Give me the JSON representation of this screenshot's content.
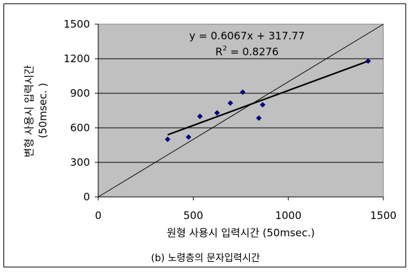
{
  "chart_data": {
    "type": "scatter",
    "xlabel": "원형 사용시 입력시간 (50msec.)",
    "ylabel_line1": "변형 사용시 입력시간",
    "ylabel_line2": "(50msec. )",
    "xlim": [
      0,
      1500
    ],
    "ylim": [
      0,
      1500
    ],
    "x_ticks": [
      0,
      500,
      1000,
      1500
    ],
    "y_ticks": [
      0,
      300,
      600,
      900,
      1200,
      1500
    ],
    "x_tick_labels": [
      "0",
      "500",
      "1000",
      "1500"
    ],
    "y_tick_labels": [
      "0",
      "300",
      "600",
      "900",
      "1200",
      "1500"
    ],
    "grid": "horizontal",
    "plot_background": "#c0c0c0",
    "series": [
      {
        "marker": "diamond",
        "color": "#000080",
        "points": [
          {
            "x": 365,
            "y": 500
          },
          {
            "x": 475,
            "y": 520
          },
          {
            "x": 535,
            "y": 700
          },
          {
            "x": 625,
            "y": 730
          },
          {
            "x": 695,
            "y": 815
          },
          {
            "x": 760,
            "y": 910
          },
          {
            "x": 845,
            "y": 685
          },
          {
            "x": 865,
            "y": 800
          },
          {
            "x": 1420,
            "y": 1180
          }
        ]
      }
    ],
    "trendline": {
      "slope": 0.6067,
      "intercept": 317.77,
      "x_range": [
        365,
        1420
      ],
      "equation_label": "y = 0.6067x + 317.77",
      "r2_prefix": "R",
      "r2_exp": "2",
      "r2_suffix": " = 0.8276"
    },
    "reference_line": {
      "from": [
        0,
        0
      ],
      "to": [
        1500,
        1500
      ]
    },
    "caption": "(b) 노령층의 문자입력시간"
  }
}
